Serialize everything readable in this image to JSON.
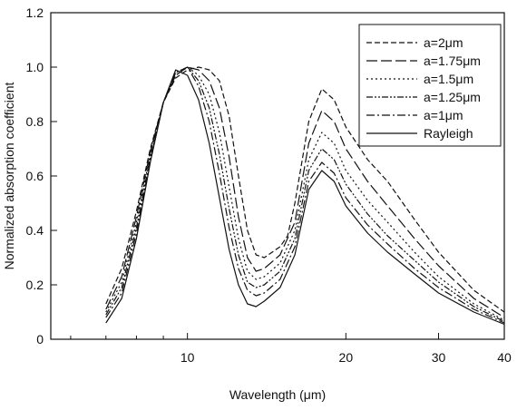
{
  "chart_data": {
    "type": "line",
    "title": "",
    "xlabel": "Wavelength (μm)",
    "ylabel": "Normalized absorption coefficient",
    "x_scale": "log",
    "xlim": [
      5.5,
      40
    ],
    "ylim": [
      0,
      1.2
    ],
    "x_ticks": [
      10,
      20,
      30,
      40
    ],
    "y_ticks": [
      0,
      0.2,
      0.4,
      0.6,
      0.8,
      1.0,
      1.2
    ],
    "y_tick_labels": [
      "0",
      "0.2",
      "0.4",
      "0.6",
      "0.8",
      "1.0",
      "1.2"
    ],
    "grid": false,
    "legend_position": "top-right",
    "series": [
      {
        "name": "a=2μm",
        "dash": "6,3",
        "points": [
          [
            7.0,
            0.13
          ],
          [
            7.5,
            0.26
          ],
          [
            8.0,
            0.47
          ],
          [
            8.5,
            0.7
          ],
          [
            9.0,
            0.87
          ],
          [
            9.5,
            0.96
          ],
          [
            10.0,
            0.99
          ],
          [
            10.5,
            1.0
          ],
          [
            11.0,
            0.99
          ],
          [
            11.5,
            0.95
          ],
          [
            12.0,
            0.82
          ],
          [
            12.5,
            0.6
          ],
          [
            13.0,
            0.4
          ],
          [
            13.5,
            0.31
          ],
          [
            14.0,
            0.3
          ],
          [
            15.0,
            0.34
          ],
          [
            15.5,
            0.38
          ],
          [
            16.0,
            0.5
          ],
          [
            17.0,
            0.8
          ],
          [
            18.0,
            0.92
          ],
          [
            19.0,
            0.88
          ],
          [
            20.0,
            0.78
          ],
          [
            22.0,
            0.66
          ],
          [
            24.0,
            0.58
          ],
          [
            27.0,
            0.44
          ],
          [
            30.0,
            0.32
          ],
          [
            35.0,
            0.18
          ],
          [
            40.0,
            0.1
          ]
        ]
      },
      {
        "name": "a=1.75μm",
        "dash": "12,4",
        "points": [
          [
            7.0,
            0.11
          ],
          [
            7.5,
            0.23
          ],
          [
            8.0,
            0.45
          ],
          [
            8.5,
            0.69
          ],
          [
            9.0,
            0.87
          ],
          [
            9.5,
            0.97
          ],
          [
            10.0,
            1.0
          ],
          [
            10.5,
            0.99
          ],
          [
            11.0,
            0.95
          ],
          [
            11.5,
            0.85
          ],
          [
            12.0,
            0.67
          ],
          [
            12.5,
            0.45
          ],
          [
            13.0,
            0.3
          ],
          [
            13.5,
            0.25
          ],
          [
            14.0,
            0.26
          ],
          [
            15.0,
            0.31
          ],
          [
            16.0,
            0.43
          ],
          [
            17.0,
            0.72
          ],
          [
            18.0,
            0.84
          ],
          [
            19.0,
            0.8
          ],
          [
            20.0,
            0.7
          ],
          [
            22.0,
            0.58
          ],
          [
            24.0,
            0.49
          ],
          [
            27.0,
            0.37
          ],
          [
            30.0,
            0.27
          ],
          [
            35.0,
            0.15
          ],
          [
            40.0,
            0.08
          ]
        ]
      },
      {
        "name": "a=1.5μm",
        "dash": "2,3",
        "points": [
          [
            7.0,
            0.1
          ],
          [
            7.5,
            0.21
          ],
          [
            8.0,
            0.43
          ],
          [
            8.5,
            0.68
          ],
          [
            9.0,
            0.87
          ],
          [
            9.5,
            0.97
          ],
          [
            10.0,
            1.0
          ],
          [
            10.5,
            0.97
          ],
          [
            11.0,
            0.9
          ],
          [
            11.5,
            0.76
          ],
          [
            12.0,
            0.56
          ],
          [
            12.5,
            0.37
          ],
          [
            13.0,
            0.25
          ],
          [
            13.5,
            0.22
          ],
          [
            14.0,
            0.23
          ],
          [
            15.0,
            0.28
          ],
          [
            16.0,
            0.4
          ],
          [
            17.0,
            0.66
          ],
          [
            18.0,
            0.76
          ],
          [
            19.0,
            0.72
          ],
          [
            20.0,
            0.62
          ],
          [
            22.0,
            0.51
          ],
          [
            24.0,
            0.43
          ],
          [
            27.0,
            0.32
          ],
          [
            30.0,
            0.23
          ],
          [
            35.0,
            0.13
          ],
          [
            40.0,
            0.07
          ]
        ]
      },
      {
        "name": "a=1.25μm",
        "dash": "7,2,2,2,2,2",
        "points": [
          [
            7.0,
            0.09
          ],
          [
            7.5,
            0.19
          ],
          [
            8.0,
            0.41
          ],
          [
            8.5,
            0.67
          ],
          [
            9.0,
            0.87
          ],
          [
            9.5,
            0.98
          ],
          [
            10.0,
            1.0
          ],
          [
            10.5,
            0.95
          ],
          [
            11.0,
            0.85
          ],
          [
            11.5,
            0.68
          ],
          [
            12.0,
            0.48
          ],
          [
            12.5,
            0.31
          ],
          [
            13.0,
            0.21
          ],
          [
            13.5,
            0.19
          ],
          [
            14.0,
            0.2
          ],
          [
            15.0,
            0.25
          ],
          [
            16.0,
            0.37
          ],
          [
            17.0,
            0.62
          ],
          [
            18.0,
            0.7
          ],
          [
            19.0,
            0.66
          ],
          [
            20.0,
            0.57
          ],
          [
            22.0,
            0.46
          ],
          [
            24.0,
            0.38
          ],
          [
            27.0,
            0.29
          ],
          [
            30.0,
            0.21
          ],
          [
            35.0,
            0.12
          ],
          [
            40.0,
            0.065
          ]
        ]
      },
      {
        "name": "a=1μm",
        "dash": "9,3,2,3",
        "points": [
          [
            7.0,
            0.08
          ],
          [
            7.5,
            0.17
          ],
          [
            8.0,
            0.39
          ],
          [
            8.5,
            0.66
          ],
          [
            9.0,
            0.87
          ],
          [
            9.5,
            0.98
          ],
          [
            10.0,
            1.0
          ],
          [
            10.5,
            0.93
          ],
          [
            11.0,
            0.8
          ],
          [
            11.5,
            0.61
          ],
          [
            12.0,
            0.41
          ],
          [
            12.5,
            0.26
          ],
          [
            13.0,
            0.18
          ],
          [
            13.5,
            0.16
          ],
          [
            14.0,
            0.17
          ],
          [
            15.0,
            0.22
          ],
          [
            16.0,
            0.34
          ],
          [
            17.0,
            0.58
          ],
          [
            18.0,
            0.65
          ],
          [
            19.0,
            0.61
          ],
          [
            20.0,
            0.52
          ],
          [
            22.0,
            0.42
          ],
          [
            24.0,
            0.35
          ],
          [
            27.0,
            0.26
          ],
          [
            30.0,
            0.19
          ],
          [
            35.0,
            0.11
          ],
          [
            40.0,
            0.06
          ]
        ]
      },
      {
        "name": "Rayleigh",
        "dash": "",
        "points": [
          [
            7.0,
            0.06
          ],
          [
            7.5,
            0.15
          ],
          [
            8.0,
            0.37
          ],
          [
            8.5,
            0.65
          ],
          [
            9.0,
            0.87
          ],
          [
            9.5,
            0.99
          ],
          [
            10.0,
            0.97
          ],
          [
            10.5,
            0.88
          ],
          [
            11.0,
            0.72
          ],
          [
            11.5,
            0.52
          ],
          [
            12.0,
            0.33
          ],
          [
            12.5,
            0.2
          ],
          [
            13.0,
            0.13
          ],
          [
            13.5,
            0.12
          ],
          [
            14.0,
            0.14
          ],
          [
            15.0,
            0.19
          ],
          [
            16.0,
            0.31
          ],
          [
            17.0,
            0.55
          ],
          [
            18.0,
            0.62
          ],
          [
            19.0,
            0.58
          ],
          [
            20.0,
            0.49
          ],
          [
            22.0,
            0.39
          ],
          [
            24.0,
            0.32
          ],
          [
            27.0,
            0.24
          ],
          [
            30.0,
            0.17
          ],
          [
            35.0,
            0.1
          ],
          [
            40.0,
            0.055
          ]
        ]
      }
    ]
  }
}
